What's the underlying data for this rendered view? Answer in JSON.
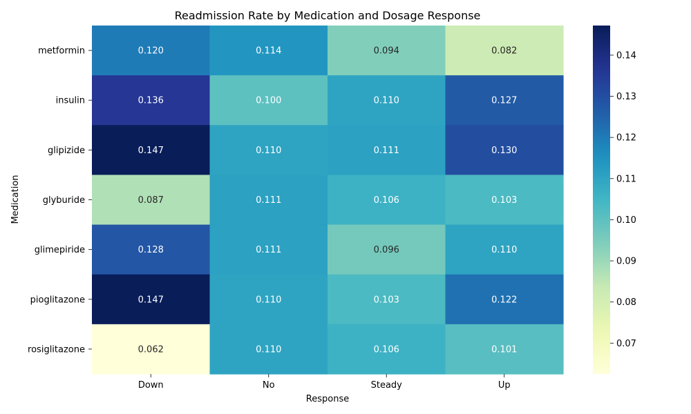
{
  "chart_data": {
    "type": "heatmap",
    "title": "Readmission Rate by Medication and Dosage Response",
    "xlabel": "Response",
    "ylabel": "Medication",
    "x_categories": [
      "Down",
      "No",
      "Steady",
      "Up"
    ],
    "y_categories": [
      "metformin",
      "insulin",
      "glipizide",
      "glyburide",
      "glimepiride",
      "pioglitazone",
      "rosiglitazone"
    ],
    "values": [
      [
        0.12,
        0.114,
        0.094,
        0.082
      ],
      [
        0.136,
        0.1,
        0.11,
        0.127
      ],
      [
        0.147,
        0.11,
        0.111,
        0.13
      ],
      [
        0.087,
        0.111,
        0.106,
        0.103
      ],
      [
        0.128,
        0.111,
        0.096,
        0.11
      ],
      [
        0.147,
        0.11,
        0.103,
        0.122
      ],
      [
        0.062,
        0.11,
        0.106,
        0.101
      ]
    ],
    "value_labels": [
      [
        "0.120",
        "0.114",
        "0.094",
        "0.082"
      ],
      [
        "0.136",
        "0.100",
        "0.110",
        "0.127"
      ],
      [
        "0.147",
        "0.110",
        "0.111",
        "0.130"
      ],
      [
        "0.087",
        "0.111",
        "0.106",
        "0.103"
      ],
      [
        "0.128",
        "0.111",
        "0.096",
        "0.110"
      ],
      [
        "0.147",
        "0.110",
        "0.103",
        "0.122"
      ],
      [
        "0.062",
        "0.110",
        "0.106",
        "0.101"
      ]
    ],
    "colormap": "YlGnBu",
    "colorbar": {
      "range": [
        0.0625,
        0.1472
      ],
      "ticks": [
        0.07,
        0.08,
        0.09,
        0.1,
        0.11,
        0.12,
        0.13,
        0.14
      ],
      "tick_labels": [
        "0.07",
        "0.08",
        "0.09",
        "0.10",
        "0.11",
        "0.12",
        "0.13",
        "0.14"
      ]
    },
    "grid": false
  }
}
